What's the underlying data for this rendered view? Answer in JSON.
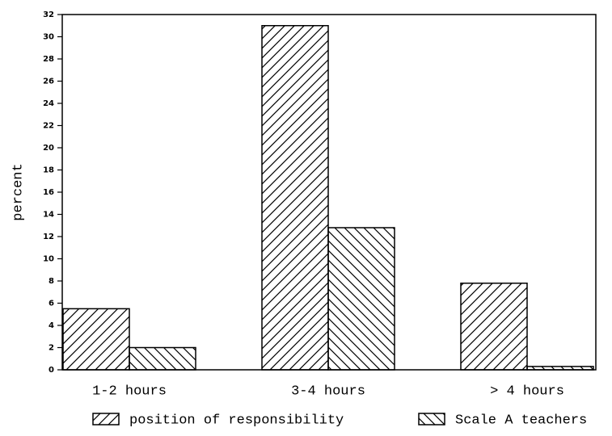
{
  "chart_data": {
    "type": "bar",
    "ylabel": "percent",
    "categories": [
      "1-2 hours",
      "3-4 hours",
      "> 4 hours"
    ],
    "series": [
      {
        "name": "position of responsibility",
        "color": "#000000",
        "hatch": "forward",
        "values": [
          5.5,
          31,
          7.8
        ]
      },
      {
        "name": "Scale A teachers",
        "color": "#000000",
        "hatch": "back",
        "values": [
          2,
          12.8,
          0.3
        ]
      }
    ],
    "ylim": [
      0,
      32
    ],
    "yticks": [
      0,
      2,
      4,
      6,
      8,
      10,
      12,
      14,
      16,
      18,
      20,
      22,
      24,
      26,
      28,
      30,
      32
    ]
  }
}
